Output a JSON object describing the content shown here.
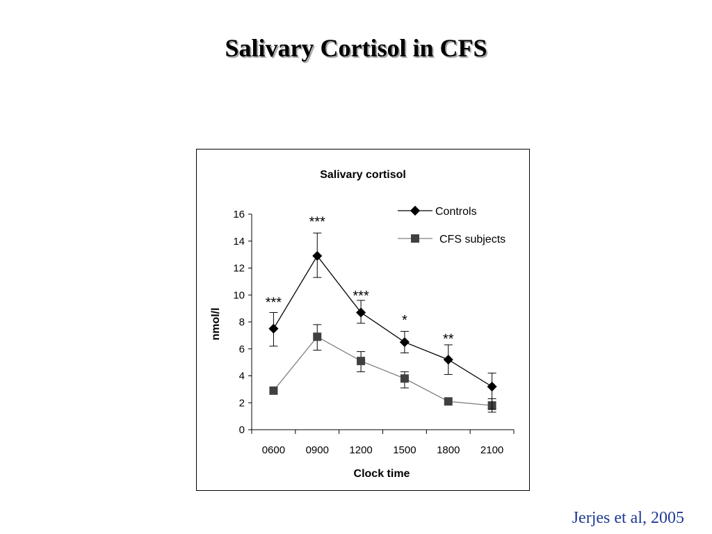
{
  "slide": {
    "title": "Salivary Cortisol in CFS",
    "citation": "Jerjes et al, 2005"
  },
  "colors": {
    "controls": "#000000",
    "cfs": "#404040",
    "cfs_line": "#808080",
    "citation": "#1f3a93"
  },
  "chart_data": {
    "type": "line",
    "title": "Salivary cortisol",
    "xlabel": "Clock time",
    "ylabel": "nmol/l",
    "categories": [
      "0600",
      "0900",
      "1200",
      "1500",
      "1800",
      "2100"
    ],
    "ylim": [
      0,
      16
    ],
    "yticks": [
      0,
      2,
      4,
      6,
      8,
      10,
      12,
      14,
      16
    ],
    "grid": false,
    "legend_position": "top-right",
    "series": [
      {
        "name": "Controls",
        "marker": "diamond",
        "values": [
          7.5,
          12.9,
          8.7,
          6.5,
          5.2,
          3.2
        ],
        "error_low": [
          6.2,
          11.3,
          7.9,
          5.7,
          4.1,
          1.5
        ],
        "error_high": [
          8.7,
          14.6,
          9.6,
          7.3,
          6.3,
          4.2
        ]
      },
      {
        "name": "CFS subjects",
        "marker": "square",
        "values": [
          2.9,
          6.9,
          5.1,
          3.8,
          2.1,
          1.8
        ],
        "error_low": [
          2.9,
          5.9,
          4.3,
          3.1,
          2.1,
          1.3
        ],
        "error_high": [
          2.9,
          7.8,
          5.8,
          4.3,
          2.1,
          2.3
        ]
      }
    ],
    "annotations": [
      {
        "category": "0600",
        "text": "***",
        "y": 9.1
      },
      {
        "category": "0900",
        "text": "***",
        "y": 15.1
      },
      {
        "category": "1200",
        "text": "***",
        "y": 9.6
      },
      {
        "category": "1500",
        "text": "*",
        "y": 7.8
      },
      {
        "category": "1800",
        "text": "**",
        "y": 6.4
      }
    ]
  }
}
